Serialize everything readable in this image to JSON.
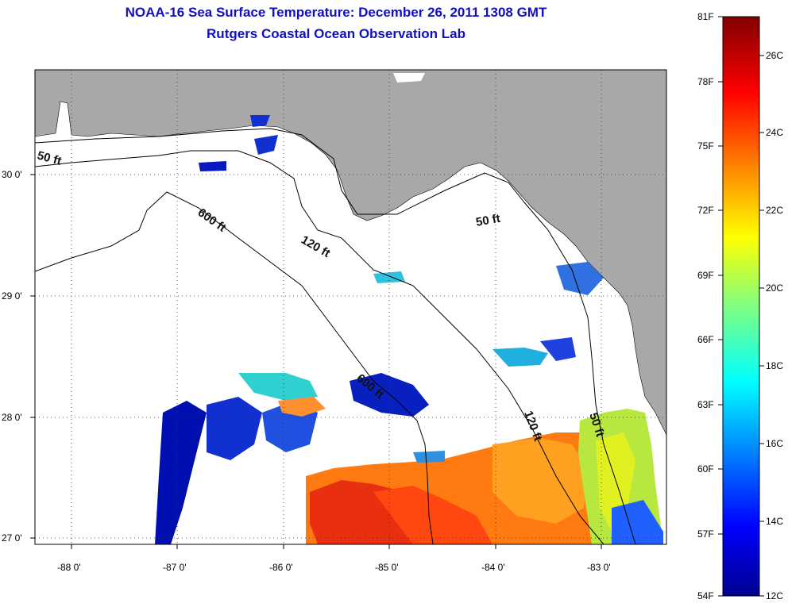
{
  "title": {
    "line1": "NOAA-16 Sea Surface Temperature:  December 26, 2011 1308 GMT",
    "line2": "Rutgers Coastal Ocean Observation Lab"
  },
  "map": {
    "lon_labels": [
      "-88 0'",
      "-87 0'",
      "-86 0'",
      "-85 0'",
      "-84 0'",
      "-83 0'"
    ],
    "lat_labels": [
      "30 0'",
      "29 0'",
      "28 0'",
      "27 0'"
    ],
    "contour_labels": [
      "50 ft",
      "600 ft",
      "120 ft",
      "50 ft",
      "600 ft",
      "120 ft",
      "50 ft"
    ],
    "colors": {
      "land": "#a8a8a8",
      "water": "#ffffff"
    }
  },
  "colorbar": {
    "fahrenheit_labels": [
      "81F",
      "78F",
      "75F",
      "72F",
      "69F",
      "66F",
      "63F",
      "60F",
      "57F",
      "54F"
    ],
    "celsius_labels": [
      "26C",
      "24C",
      "22C",
      "20C",
      "18C",
      "16C",
      "14C",
      "12C"
    ],
    "range_c": [
      12,
      27.2
    ],
    "colormap": "jet"
  }
}
